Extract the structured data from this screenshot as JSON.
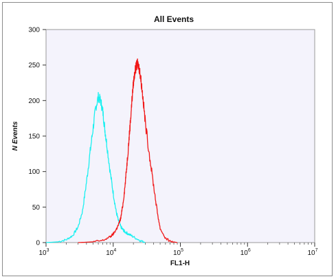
{
  "chart_data": {
    "type": "line",
    "title": "All Events",
    "xlabel": "FL1-H",
    "ylabel": "N Events",
    "xscale": "log",
    "xlim": [
      1000,
      10000000
    ],
    "ylim": [
      0,
      300
    ],
    "x_ticks": [
      {
        "base": "10",
        "exp": "3",
        "value": 1000
      },
      {
        "base": "10",
        "exp": "4",
        "value": 10000
      },
      {
        "base": "10",
        "exp": "5",
        "value": 100000
      },
      {
        "base": "10",
        "exp": "6",
        "value": 1000000
      },
      {
        "base": "10",
        "exp": "7",
        "value": 10000000
      }
    ],
    "y_ticks": [
      "0",
      "50",
      "100",
      "150",
      "200",
      "250",
      "300"
    ],
    "series": [
      {
        "color": "#19f0f0",
        "x": [
          1000,
          1500,
          2000,
          2500,
          3000,
          3500,
          4000,
          4500,
          5000,
          5500,
          6000,
          6500,
          7000,
          7500,
          8000,
          9000,
          10000,
          11000,
          12000,
          13000,
          14000,
          15000,
          17000,
          20000,
          25000,
          30000
        ],
        "y": [
          0,
          1,
          4,
          10,
          22,
          45,
          85,
          125,
          160,
          190,
          205,
          200,
          185,
          160,
          140,
          100,
          70,
          45,
          30,
          22,
          18,
          15,
          12,
          8,
          3,
          0
        ]
      },
      {
        "color": "#f01818",
        "x": [
          3000,
          5000,
          7000,
          9000,
          10000,
          11000,
          12000,
          13000,
          14000,
          15000,
          16000,
          17000,
          18000,
          19000,
          20000,
          21000,
          22000,
          23000,
          24000,
          25000,
          26000,
          28000,
          30000,
          35000,
          40000,
          45000,
          50000,
          60000,
          70000,
          90000
        ],
        "y": [
          0,
          1,
          3,
          8,
          12,
          18,
          25,
          35,
          55,
          80,
          110,
          140,
          170,
          200,
          225,
          240,
          248,
          252,
          248,
          240,
          228,
          200,
          170,
          120,
          80,
          45,
          20,
          6,
          2,
          0
        ]
      }
    ]
  }
}
